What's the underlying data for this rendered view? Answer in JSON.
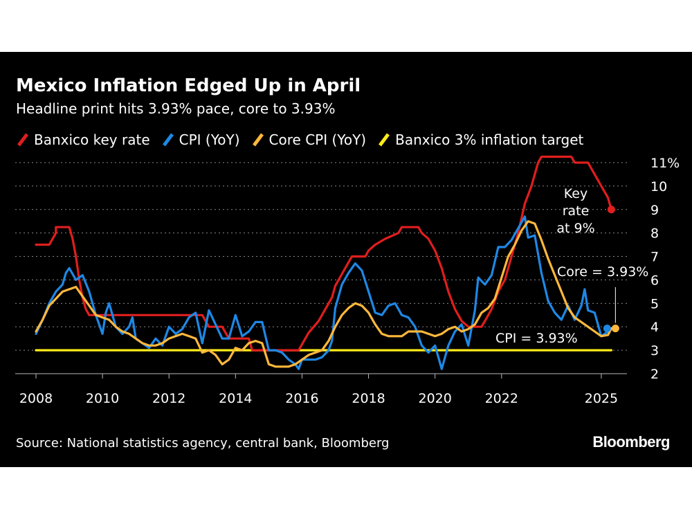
{
  "header": {
    "title": "Mexico Inflation Edged Up in April",
    "subtitle": "Headline print hits 3.93% pace, core to 3.93%"
  },
  "footer": {
    "source": "Source: National statistics agency, central bank, Bloomberg",
    "brand": "Bloomberg"
  },
  "chart_data": {
    "type": "line",
    "xlim": [
      2008,
      2026
    ],
    "ylim": [
      2,
      11
    ],
    "y_unit": "%",
    "x_ticks": [
      {
        "value": 2008,
        "label": "2008"
      },
      {
        "value": 2010,
        "label": "2010"
      },
      {
        "value": 2012,
        "label": "2012"
      },
      {
        "value": 2014,
        "label": "2014"
      },
      {
        "value": 2016,
        "label": "2016"
      },
      {
        "value": 2018,
        "label": "2018"
      },
      {
        "value": 2020,
        "label": "2020"
      },
      {
        "value": 2022,
        "label": "2022"
      },
      {
        "value": 2025,
        "label": "2025"
      }
    ],
    "y_ticks": [
      {
        "value": 2,
        "label": "2"
      },
      {
        "value": 3,
        "label": "3"
      },
      {
        "value": 4,
        "label": "4"
      },
      {
        "value": 5,
        "label": "5"
      },
      {
        "value": 6,
        "label": "6"
      },
      {
        "value": 7,
        "label": "7"
      },
      {
        "value": 8,
        "label": "8"
      },
      {
        "value": 9,
        "label": "9"
      },
      {
        "value": 10,
        "label": "10"
      },
      {
        "value": 11,
        "label": "11%"
      }
    ],
    "grid": "horizontal dotted",
    "legend_position": "top-left",
    "series": [
      {
        "name": "Banxico 3% inflation target",
        "color": "#ffec1a",
        "points": [
          [
            2008.0,
            3.0
          ],
          [
            2025.3,
            3.0
          ]
        ]
      },
      {
        "name": "Banxico key rate",
        "color": "#e01e1e",
        "points": [
          [
            2008.0,
            7.5
          ],
          [
            2008.4,
            7.5
          ],
          [
            2008.6,
            8.0
          ],
          [
            2008.6,
            8.25
          ],
          [
            2009.0,
            8.25
          ],
          [
            2009.1,
            7.75
          ],
          [
            2009.2,
            7.0
          ],
          [
            2009.3,
            6.0
          ],
          [
            2009.4,
            5.25
          ],
          [
            2009.5,
            4.75
          ],
          [
            2009.6,
            4.5
          ],
          [
            2013.0,
            4.5
          ],
          [
            2013.2,
            4.0
          ],
          [
            2013.6,
            4.0
          ],
          [
            2013.8,
            3.5
          ],
          [
            2014.4,
            3.5
          ],
          [
            2014.5,
            3.0
          ],
          [
            2015.9,
            3.0
          ],
          [
            2016.0,
            3.25
          ],
          [
            2016.2,
            3.75
          ],
          [
            2016.5,
            4.25
          ],
          [
            2016.7,
            4.75
          ],
          [
            2016.9,
            5.25
          ],
          [
            2017.0,
            5.75
          ],
          [
            2017.2,
            6.25
          ],
          [
            2017.4,
            6.75
          ],
          [
            2017.5,
            7.0
          ],
          [
            2017.9,
            7.0
          ],
          [
            2018.0,
            7.25
          ],
          [
            2018.2,
            7.5
          ],
          [
            2018.5,
            7.75
          ],
          [
            2018.9,
            8.0
          ],
          [
            2019.0,
            8.25
          ],
          [
            2019.5,
            8.25
          ],
          [
            2019.6,
            8.0
          ],
          [
            2019.8,
            7.75
          ],
          [
            2019.9,
            7.5
          ],
          [
            2020.0,
            7.25
          ],
          [
            2020.2,
            6.5
          ],
          [
            2020.4,
            5.5
          ],
          [
            2020.6,
            4.75
          ],
          [
            2020.8,
            4.25
          ],
          [
            2021.0,
            4.0
          ],
          [
            2021.4,
            4.0
          ],
          [
            2021.5,
            4.25
          ],
          [
            2021.7,
            4.75
          ],
          [
            2021.9,
            5.5
          ],
          [
            2022.1,
            6.0
          ],
          [
            2022.3,
            7.0
          ],
          [
            2022.5,
            8.0
          ],
          [
            2022.7,
            9.25
          ],
          [
            2022.9,
            10.0
          ],
          [
            2023.1,
            11.0
          ],
          [
            2023.2,
            11.25
          ],
          [
            2024.1,
            11.25
          ],
          [
            2024.2,
            11.0
          ],
          [
            2024.6,
            11.0
          ],
          [
            2024.8,
            10.5
          ],
          [
            2025.0,
            10.0
          ],
          [
            2025.2,
            9.5
          ],
          [
            2025.3,
            9.0
          ]
        ]
      },
      {
        "name": "CPI (YoY)",
        "color": "#1e88e5",
        "points": [
          [
            2008.0,
            3.7
          ],
          [
            2008.2,
            4.3
          ],
          [
            2008.4,
            5.0
          ],
          [
            2008.6,
            5.5
          ],
          [
            2008.8,
            5.8
          ],
          [
            2008.9,
            6.3
          ],
          [
            2009.0,
            6.5
          ],
          [
            2009.2,
            6.0
          ],
          [
            2009.4,
            6.2
          ],
          [
            2009.6,
            5.5
          ],
          [
            2009.8,
            4.5
          ],
          [
            2010.0,
            3.7
          ],
          [
            2010.1,
            4.6
          ],
          [
            2010.2,
            5.0
          ],
          [
            2010.4,
            4.0
          ],
          [
            2010.6,
            3.7
          ],
          [
            2010.8,
            4.0
          ],
          [
            2010.9,
            4.4
          ],
          [
            2011.0,
            3.5
          ],
          [
            2011.2,
            3.3
          ],
          [
            2011.4,
            3.1
          ],
          [
            2011.6,
            3.5
          ],
          [
            2011.8,
            3.2
          ],
          [
            2012.0,
            4.0
          ],
          [
            2012.2,
            3.7
          ],
          [
            2012.4,
            3.9
          ],
          [
            2012.6,
            4.4
          ],
          [
            2012.8,
            4.6
          ],
          [
            2013.0,
            3.3
          ],
          [
            2013.2,
            4.7
          ],
          [
            2013.4,
            4.1
          ],
          [
            2013.6,
            3.5
          ],
          [
            2013.8,
            3.5
          ],
          [
            2014.0,
            4.5
          ],
          [
            2014.2,
            3.6
          ],
          [
            2014.4,
            3.8
          ],
          [
            2014.6,
            4.2
          ],
          [
            2014.8,
            4.2
          ],
          [
            2015.0,
            3.0
          ],
          [
            2015.2,
            3.0
          ],
          [
            2015.4,
            2.9
          ],
          [
            2015.6,
            2.6
          ],
          [
            2015.8,
            2.4
          ],
          [
            2015.9,
            2.2
          ],
          [
            2016.0,
            2.6
          ],
          [
            2016.2,
            2.6
          ],
          [
            2016.4,
            2.6
          ],
          [
            2016.6,
            2.7
          ],
          [
            2016.8,
            3.0
          ],
          [
            2016.9,
            3.4
          ],
          [
            2017.0,
            4.8
          ],
          [
            2017.2,
            5.8
          ],
          [
            2017.4,
            6.3
          ],
          [
            2017.6,
            6.7
          ],
          [
            2017.8,
            6.4
          ],
          [
            2018.0,
            5.5
          ],
          [
            2018.2,
            4.6
          ],
          [
            2018.4,
            4.5
          ],
          [
            2018.6,
            4.9
          ],
          [
            2018.8,
            5.0
          ],
          [
            2019.0,
            4.5
          ],
          [
            2019.2,
            4.4
          ],
          [
            2019.4,
            4.0
          ],
          [
            2019.6,
            3.2
          ],
          [
            2019.8,
            2.9
          ],
          [
            2020.0,
            3.2
          ],
          [
            2020.2,
            2.2
          ],
          [
            2020.4,
            3.2
          ],
          [
            2020.6,
            3.8
          ],
          [
            2020.8,
            4.1
          ],
          [
            2021.0,
            3.2
          ],
          [
            2021.2,
            4.7
          ],
          [
            2021.3,
            6.1
          ],
          [
            2021.5,
            5.8
          ],
          [
            2021.7,
            6.2
          ],
          [
            2021.9,
            7.4
          ],
          [
            2022.1,
            7.4
          ],
          [
            2022.3,
            7.7
          ],
          [
            2022.5,
            8.2
          ],
          [
            2022.7,
            8.7
          ],
          [
            2022.8,
            7.8
          ],
          [
            2023.0,
            7.9
          ],
          [
            2023.2,
            6.3
          ],
          [
            2023.4,
            5.1
          ],
          [
            2023.6,
            4.6
          ],
          [
            2023.8,
            4.3
          ],
          [
            2024.0,
            4.9
          ],
          [
            2024.2,
            4.3
          ],
          [
            2024.4,
            4.9
          ],
          [
            2024.5,
            5.6
          ],
          [
            2024.6,
            4.7
          ],
          [
            2024.8,
            4.6
          ],
          [
            2025.0,
            3.6
          ],
          [
            2025.2,
            3.8
          ],
          [
            2025.3,
            3.93
          ]
        ]
      },
      {
        "name": "Core CPI (YoY)",
        "color": "#ffb83d",
        "points": [
          [
            2008.0,
            3.8
          ],
          [
            2008.2,
            4.3
          ],
          [
            2008.4,
            4.9
          ],
          [
            2008.6,
            5.2
          ],
          [
            2008.8,
            5.5
          ],
          [
            2009.0,
            5.6
          ],
          [
            2009.2,
            5.7
          ],
          [
            2009.4,
            5.3
          ],
          [
            2009.6,
            4.9
          ],
          [
            2009.8,
            4.5
          ],
          [
            2010.0,
            4.4
          ],
          [
            2010.2,
            4.3
          ],
          [
            2010.4,
            4.0
          ],
          [
            2010.6,
            3.8
          ],
          [
            2010.8,
            3.7
          ],
          [
            2011.0,
            3.5
          ],
          [
            2011.2,
            3.3
          ],
          [
            2011.4,
            3.2
          ],
          [
            2011.6,
            3.2
          ],
          [
            2011.8,
            3.3
          ],
          [
            2012.0,
            3.5
          ],
          [
            2012.2,
            3.6
          ],
          [
            2012.4,
            3.7
          ],
          [
            2012.6,
            3.6
          ],
          [
            2012.8,
            3.5
          ],
          [
            2013.0,
            2.9
          ],
          [
            2013.2,
            3.0
          ],
          [
            2013.4,
            2.8
          ],
          [
            2013.6,
            2.4
          ],
          [
            2013.8,
            2.6
          ],
          [
            2014.0,
            3.1
          ],
          [
            2014.2,
            3.0
          ],
          [
            2014.4,
            3.3
          ],
          [
            2014.6,
            3.4
          ],
          [
            2014.8,
            3.3
          ],
          [
            2015.0,
            2.4
          ],
          [
            2015.2,
            2.3
          ],
          [
            2015.4,
            2.3
          ],
          [
            2015.6,
            2.3
          ],
          [
            2015.8,
            2.4
          ],
          [
            2016.0,
            2.6
          ],
          [
            2016.2,
            2.8
          ],
          [
            2016.4,
            2.9
          ],
          [
            2016.6,
            3.0
          ],
          [
            2016.8,
            3.4
          ],
          [
            2017.0,
            4.0
          ],
          [
            2017.2,
            4.5
          ],
          [
            2017.4,
            4.8
          ],
          [
            2017.6,
            5.0
          ],
          [
            2017.8,
            4.9
          ],
          [
            2018.0,
            4.6
          ],
          [
            2018.2,
            4.1
          ],
          [
            2018.4,
            3.7
          ],
          [
            2018.6,
            3.6
          ],
          [
            2018.8,
            3.6
          ],
          [
            2019.0,
            3.6
          ],
          [
            2019.2,
            3.8
          ],
          [
            2019.4,
            3.8
          ],
          [
            2019.6,
            3.8
          ],
          [
            2019.8,
            3.7
          ],
          [
            2020.0,
            3.6
          ],
          [
            2020.2,
            3.7
          ],
          [
            2020.4,
            3.9
          ],
          [
            2020.6,
            4.0
          ],
          [
            2020.8,
            3.8
          ],
          [
            2021.0,
            3.9
          ],
          [
            2021.2,
            4.1
          ],
          [
            2021.4,
            4.6
          ],
          [
            2021.6,
            4.8
          ],
          [
            2021.8,
            5.2
          ],
          [
            2022.0,
            6.1
          ],
          [
            2022.2,
            7.0
          ],
          [
            2022.4,
            7.5
          ],
          [
            2022.6,
            8.1
          ],
          [
            2022.8,
            8.5
          ],
          [
            2023.0,
            8.4
          ],
          [
            2023.2,
            7.7
          ],
          [
            2023.4,
            6.9
          ],
          [
            2023.6,
            6.2
          ],
          [
            2023.8,
            5.5
          ],
          [
            2024.0,
            4.8
          ],
          [
            2024.2,
            4.4
          ],
          [
            2024.4,
            4.2
          ],
          [
            2024.6,
            4.0
          ],
          [
            2024.8,
            3.8
          ],
          [
            2025.0,
            3.6
          ],
          [
            2025.2,
            3.65
          ],
          [
            2025.3,
            3.93
          ]
        ]
      }
    ],
    "annotations": {
      "key_rate": [
        "Key",
        "rate",
        "at 9%"
      ],
      "core": "Core = 3.93%",
      "cpi": "CPI = 3.93%"
    }
  }
}
